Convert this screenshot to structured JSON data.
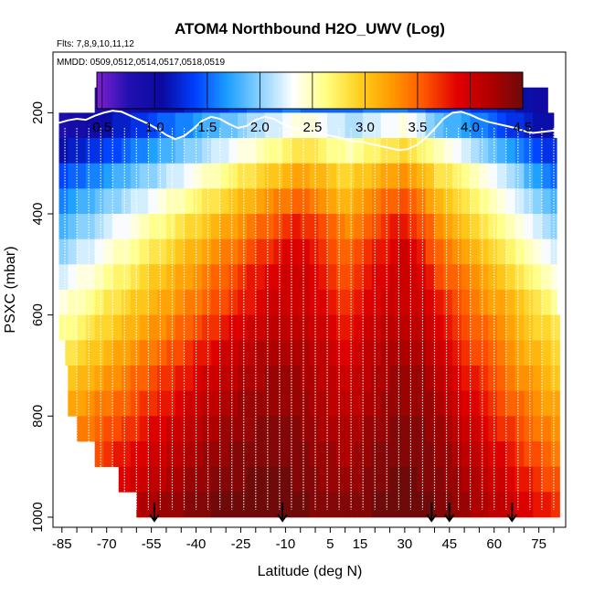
{
  "chart_data": {
    "type": "heatmap",
    "title": "ATOM4 Northbound H2O_UWV (Log)",
    "flights_note": "Flts: 7,8,9,10,11,12",
    "dates_note": "MMDD: 0509,0512,0514,0517,0518,0519",
    "xlabel": "Latitude (deg N)",
    "ylabel": "PSXC (mbar)",
    "xlim": [
      -88,
      84
    ],
    "ylim": [
      1020,
      80
    ],
    "x_ticks": [
      -85,
      -70,
      -55,
      -40,
      -25,
      -10,
      5,
      15,
      30,
      45,
      60,
      75
    ],
    "y_ticks": [
      200,
      400,
      600,
      800,
      1000
    ],
    "colorbar": {
      "range": [
        0.45,
        4.5
      ],
      "ticks": [
        0.5,
        1.0,
        1.5,
        2.0,
        2.5,
        3.0,
        3.5,
        4.0,
        4.5
      ],
      "tick_labels": [
        "0.5",
        "1.0",
        "1.5",
        "2.0",
        "2.5",
        "3.0",
        "3.5",
        "4.0",
        "4.5"
      ],
      "colors": [
        "#8020d0",
        "#2010b0",
        "#0a0aa0",
        "#0040ff",
        "#1ea0ff",
        "#8cd2ff",
        "#ffffff",
        "#ffff80",
        "#ffd020",
        "#ff9a00",
        "#ff5500",
        "#e00000",
        "#b00000",
        "#6e0a0a"
      ]
    },
    "pressure_levels": [
      175,
      225,
      275,
      325,
      375,
      425,
      475,
      525,
      575,
      625,
      675,
      725,
      775,
      825,
      875,
      925,
      975
    ],
    "grid_latitudes": [
      -84.5,
      -81.5,
      -78.5,
      -75.5,
      -72.5,
      -69.5,
      -66.5,
      -63.5,
      -60.5,
      -57.5,
      -54.5,
      -51.5,
      -48.5,
      -45.5,
      -42.5,
      -39.5,
      -36.5,
      -33.5,
      -30.5,
      -27.5,
      -24.5,
      -21.5,
      -18.5,
      -15.5,
      -12.5,
      -9.5,
      -6.5,
      -3.5,
      -0.5,
      2.5,
      5.5,
      8.5,
      11.5,
      14.5,
      17.5,
      20.5,
      23.5,
      26.5,
      29.5,
      32.5,
      35.5,
      38.5,
      41.5,
      44.5,
      47.5,
      50.5,
      53.5,
      56.5,
      59.5,
      62.5,
      65.5,
      68.5,
      71.5,
      74.5,
      77.5,
      80.5,
      83.5
    ],
    "level_lat_ranges": [
      [
        -74,
        78
      ],
      [
        -87,
        80
      ],
      [
        -87,
        81
      ],
      [
        -86,
        81
      ],
      [
        -86,
        81
      ],
      [
        -86,
        81
      ],
      [
        -86,
        81
      ],
      [
        -86,
        81
      ],
      [
        -86,
        81
      ],
      [
        -86,
        82
      ],
      [
        -84,
        82
      ],
      [
        -83,
        82
      ],
      [
        -83,
        82
      ],
      [
        -80,
        82
      ],
      [
        -74,
        82
      ],
      [
        -66,
        82
      ],
      [
        -60,
        82
      ]
    ],
    "log10_values_by_level": [
      [
        0.6,
        0.6,
        0.6,
        0.7,
        0.8,
        0.8,
        0.8,
        0.9,
        0.9,
        1.0,
        1.0,
        1.1,
        1.1,
        1.1,
        1.2,
        1.2,
        1.3,
        1.3,
        1.3,
        1.4,
        1.4,
        1.5,
        1.5,
        1.5,
        1.5,
        1.6,
        1.6,
        1.5,
        1.5,
        1.5,
        1.5,
        1.5,
        1.5,
        1.5,
        1.6,
        1.6,
        1.6,
        1.6,
        1.6,
        1.5,
        1.5,
        1.4,
        1.4,
        1.4,
        1.4,
        1.4,
        1.3,
        1.3,
        1.3,
        1.2,
        1.2,
        1.1,
        1.1,
        1.0,
        1.0,
        1.0,
        0.9
      ],
      [
        0.8,
        0.9,
        0.9,
        1.0,
        1.0,
        1.1,
        1.2,
        1.2,
        1.3,
        1.3,
        1.4,
        1.5,
        1.5,
        1.6,
        1.6,
        1.7,
        1.8,
        1.8,
        1.9,
        1.9,
        2.0,
        2.1,
        2.1,
        2.2,
        2.2,
        2.3,
        2.4,
        2.4,
        2.4,
        2.3,
        2.2,
        2.2,
        2.1,
        2.1,
        2.2,
        2.2,
        2.3,
        2.3,
        2.4,
        2.3,
        2.2,
        2.0,
        1.9,
        1.8,
        1.8,
        1.7,
        1.6,
        1.6,
        1.5,
        1.4,
        1.3,
        1.3,
        1.2,
        1.1,
        1.1,
        1.0,
        1.0
      ],
      [
        1.1,
        1.2,
        1.2,
        1.3,
        1.3,
        1.4,
        1.4,
        1.5,
        1.6,
        1.6,
        1.7,
        1.8,
        1.8,
        1.9,
        2.0,
        2.0,
        2.1,
        2.2,
        2.2,
        2.3,
        2.4,
        2.4,
        2.5,
        2.6,
        2.6,
        2.7,
        2.8,
        2.8,
        2.8,
        2.7,
        2.6,
        2.6,
        2.5,
        2.6,
        2.7,
        2.7,
        2.8,
        2.8,
        2.9,
        2.8,
        2.7,
        2.6,
        2.5,
        2.4,
        2.3,
        2.2,
        2.1,
        2.0,
        1.9,
        1.8,
        1.7,
        1.6,
        1.5,
        1.4,
        1.3,
        1.3,
        1.2
      ],
      [
        1.4,
        1.5,
        1.5,
        1.6,
        1.6,
        1.7,
        1.8,
        1.8,
        1.9,
        2.0,
        2.0,
        2.1,
        2.2,
        2.2,
        2.3,
        2.4,
        2.5,
        2.5,
        2.6,
        2.7,
        2.8,
        2.8,
        2.9,
        3.0,
        3.0,
        3.1,
        3.2,
        3.2,
        3.1,
        3.1,
        3.0,
        2.9,
        2.9,
        3.0,
        3.0,
        3.1,
        3.2,
        3.2,
        3.3,
        3.2,
        3.1,
        3.0,
        2.8,
        2.8,
        2.7,
        2.6,
        2.5,
        2.4,
        2.3,
        2.2,
        2.1,
        2.0,
        1.8,
        1.7,
        1.6,
        1.5,
        1.5
      ],
      [
        1.6,
        1.7,
        1.8,
        1.8,
        1.9,
        2.0,
        2.0,
        2.1,
        2.2,
        2.2,
        2.3,
        2.4,
        2.5,
        2.5,
        2.6,
        2.7,
        2.8,
        2.8,
        2.9,
        3.0,
        3.1,
        3.1,
        3.2,
        3.3,
        3.4,
        3.4,
        3.5,
        3.5,
        3.4,
        3.3,
        3.2,
        3.1,
        3.1,
        3.2,
        3.3,
        3.4,
        3.5,
        3.5,
        3.6,
        3.5,
        3.4,
        3.2,
        3.1,
        3.0,
        2.9,
        2.8,
        2.7,
        2.6,
        2.5,
        2.4,
        2.3,
        2.2,
        2.1,
        2.0,
        1.9,
        1.8,
        1.7
      ],
      [
        1.8,
        1.9,
        2.0,
        2.0,
        2.1,
        2.2,
        2.3,
        2.3,
        2.4,
        2.5,
        2.6,
        2.6,
        2.7,
        2.8,
        2.9,
        2.9,
        3.0,
        3.1,
        3.2,
        3.2,
        3.3,
        3.4,
        3.5,
        3.5,
        3.6,
        3.7,
        3.8,
        3.7,
        3.7,
        3.6,
        3.5,
        3.4,
        3.3,
        3.4,
        3.5,
        3.6,
        3.7,
        3.8,
        3.8,
        3.7,
        3.6,
        3.5,
        3.3,
        3.2,
        3.1,
        3.0,
        2.9,
        2.8,
        2.7,
        2.6,
        2.5,
        2.4,
        2.3,
        2.2,
        2.1,
        2.0,
        1.9
      ],
      [
        2.0,
        2.1,
        2.2,
        2.2,
        2.3,
        2.4,
        2.5,
        2.5,
        2.6,
        2.7,
        2.8,
        2.8,
        2.9,
        3.0,
        3.1,
        3.1,
        3.2,
        3.3,
        3.4,
        3.4,
        3.5,
        3.6,
        3.7,
        3.7,
        3.8,
        3.9,
        3.9,
        3.9,
        3.8,
        3.7,
        3.6,
        3.5,
        3.5,
        3.6,
        3.7,
        3.8,
        3.8,
        3.9,
        4.0,
        3.9,
        3.8,
        3.6,
        3.5,
        3.4,
        3.3,
        3.2,
        3.1,
        3.0,
        2.9,
        2.8,
        2.7,
        2.6,
        2.5,
        2.4,
        2.3,
        2.2,
        2.1
      ],
      [
        2.2,
        2.3,
        2.4,
        2.4,
        2.5,
        2.6,
        2.7,
        2.7,
        2.8,
        2.9,
        3.0,
        3.0,
        3.1,
        3.2,
        3.2,
        3.3,
        3.4,
        3.5,
        3.5,
        3.6,
        3.7,
        3.8,
        3.8,
        3.9,
        3.9,
        4.0,
        4.0,
        4.0,
        3.9,
        3.8,
        3.7,
        3.6,
        3.6,
        3.7,
        3.8,
        3.9,
        3.9,
        4.0,
        4.0,
        4.0,
        3.9,
        3.8,
        3.6,
        3.5,
        3.5,
        3.4,
        3.3,
        3.2,
        3.1,
        3.0,
        2.9,
        2.8,
        2.7,
        2.6,
        2.5,
        2.4,
        2.3
      ],
      [
        2.4,
        2.5,
        2.5,
        2.6,
        2.7,
        2.8,
        2.8,
        2.9,
        3.0,
        3.0,
        3.1,
        3.2,
        3.2,
        3.3,
        3.4,
        3.4,
        3.5,
        3.6,
        3.6,
        3.7,
        3.8,
        3.8,
        3.9,
        4.0,
        4.0,
        4.0,
        4.0,
        4.0,
        3.9,
        3.9,
        3.8,
        3.7,
        3.7,
        3.8,
        3.9,
        3.9,
        4.0,
        4.0,
        4.0,
        4.0,
        4.0,
        3.9,
        3.8,
        3.7,
        3.6,
        3.5,
        3.4,
        3.3,
        3.2,
        3.2,
        3.1,
        3.0,
        2.9,
        2.8,
        2.7,
        2.6,
        2.5
      ],
      [
        2.6,
        2.6,
        2.7,
        2.8,
        2.9,
        2.9,
        3.0,
        3.1,
        3.1,
        3.2,
        3.3,
        3.3,
        3.4,
        3.5,
        3.5,
        3.6,
        3.7,
        3.7,
        3.8,
        3.9,
        3.9,
        4.0,
        4.0,
        4.1,
        4.1,
        4.1,
        4.1,
        4.1,
        4.0,
        4.0,
        3.9,
        3.8,
        3.8,
        3.9,
        4.0,
        4.0,
        4.1,
        4.1,
        4.1,
        4.1,
        4.1,
        4.0,
        3.9,
        3.8,
        3.7,
        3.6,
        3.5,
        3.5,
        3.4,
        3.3,
        3.2,
        3.1,
        3.0,
        2.9,
        2.9,
        2.8,
        2.7
      ],
      [
        2.8,
        2.8,
        2.9,
        3.0,
        3.0,
        3.1,
        3.2,
        3.2,
        3.3,
        3.4,
        3.4,
        3.5,
        3.6,
        3.6,
        3.7,
        3.8,
        3.8,
        3.9,
        4.0,
        4.0,
        4.1,
        4.1,
        4.2,
        4.2,
        4.2,
        4.2,
        4.2,
        4.2,
        4.1,
        4.1,
        4.0,
        3.9,
        3.9,
        4.0,
        4.1,
        4.1,
        4.2,
        4.2,
        4.2,
        4.2,
        4.2,
        4.1,
        4.0,
        3.9,
        3.8,
        3.7,
        3.6,
        3.6,
        3.5,
        3.4,
        3.3,
        3.2,
        3.1,
        3.1,
        3.0,
        2.9,
        2.8
      ],
      [
        3.0,
        3.0,
        3.1,
        3.1,
        3.2,
        3.3,
        3.3,
        3.4,
        3.5,
        3.5,
        3.6,
        3.7,
        3.7,
        3.8,
        3.8,
        3.9,
        4.0,
        4.0,
        4.1,
        4.1,
        4.2,
        4.2,
        4.2,
        4.3,
        4.3,
        4.3,
        4.3,
        4.2,
        4.2,
        4.1,
        4.1,
        4.0,
        4.0,
        4.1,
        4.1,
        4.2,
        4.2,
        4.3,
        4.3,
        4.3,
        4.3,
        4.2,
        4.1,
        4.0,
        3.9,
        3.8,
        3.8,
        3.7,
        3.6,
        3.5,
        3.4,
        3.3,
        3.3,
        3.2,
        3.1,
        3.0,
        3.0
      ],
      [
        3.1,
        3.2,
        3.2,
        3.3,
        3.4,
        3.4,
        3.5,
        3.5,
        3.6,
        3.7,
        3.7,
        3.8,
        3.8,
        3.9,
        4.0,
        4.0,
        4.1,
        4.1,
        4.2,
        4.2,
        4.3,
        4.3,
        4.3,
        4.3,
        4.3,
        4.3,
        4.3,
        4.3,
        4.2,
        4.2,
        4.1,
        4.1,
        4.1,
        4.1,
        4.2,
        4.2,
        4.3,
        4.3,
        4.3,
        4.3,
        4.3,
        4.3,
        4.2,
        4.1,
        4.0,
        3.9,
        3.9,
        3.8,
        3.7,
        3.6,
        3.5,
        3.5,
        3.4,
        3.3,
        3.2,
        3.2,
        3.1
      ],
      [
        3.3,
        3.3,
        3.4,
        3.4,
        3.5,
        3.6,
        3.6,
        3.7,
        3.7,
        3.8,
        3.9,
        3.9,
        4.0,
        4.0,
        4.1,
        4.1,
        4.2,
        4.2,
        4.3,
        4.3,
        4.3,
        4.3,
        4.4,
        4.4,
        4.4,
        4.4,
        4.4,
        4.3,
        4.3,
        4.2,
        4.2,
        4.2,
        4.2,
        4.2,
        4.3,
        4.3,
        4.3,
        4.4,
        4.4,
        4.4,
        4.4,
        4.3,
        4.3,
        4.2,
        4.1,
        4.0,
        4.0,
        3.9,
        3.8,
        3.7,
        3.7,
        3.6,
        3.5,
        3.4,
        3.4,
        3.3,
        3.2
      ],
      [
        3.4,
        3.5,
        3.5,
        3.6,
        3.6,
        3.7,
        3.8,
        3.8,
        3.9,
        3.9,
        4.0,
        4.0,
        4.1,
        4.1,
        4.2,
        4.2,
        4.3,
        4.3,
        4.3,
        4.4,
        4.4,
        4.4,
        4.4,
        4.4,
        4.4,
        4.4,
        4.4,
        4.4,
        4.3,
        4.3,
        4.3,
        4.2,
        4.2,
        4.3,
        4.3,
        4.4,
        4.4,
        4.4,
        4.4,
        4.4,
        4.4,
        4.4,
        4.3,
        4.3,
        4.2,
        4.1,
        4.1,
        4.0,
        3.9,
        3.9,
        3.8,
        3.7,
        3.6,
        3.6,
        3.5,
        3.4,
        3.4
      ],
      [
        3.6,
        3.6,
        3.7,
        3.7,
        3.8,
        3.8,
        3.9,
        3.9,
        4.0,
        4.0,
        4.1,
        4.1,
        4.2,
        4.2,
        4.3,
        4.3,
        4.3,
        4.4,
        4.4,
        4.4,
        4.4,
        4.5,
        4.5,
        4.5,
        4.5,
        4.5,
        4.4,
        4.4,
        4.4,
        4.3,
        4.3,
        4.3,
        4.3,
        4.3,
        4.4,
        4.4,
        4.4,
        4.5,
        4.5,
        4.5,
        4.4,
        4.4,
        4.4,
        4.3,
        4.3,
        4.2,
        4.2,
        4.1,
        4.0,
        4.0,
        3.9,
        3.8,
        3.8,
        3.7,
        3.6,
        3.6,
        3.5
      ],
      [
        3.7,
        3.8,
        3.8,
        3.9,
        3.9,
        4.0,
        4.0,
        4.1,
        4.1,
        4.2,
        4.2,
        4.3,
        4.3,
        4.3,
        4.4,
        4.4,
        4.4,
        4.5,
        4.5,
        4.5,
        4.5,
        4.5,
        4.5,
        4.5,
        4.5,
        4.5,
        4.5,
        4.5,
        4.4,
        4.4,
        4.4,
        4.4,
        4.4,
        4.4,
        4.4,
        4.5,
        4.5,
        4.5,
        4.5,
        4.5,
        4.5,
        4.5,
        4.4,
        4.4,
        4.3,
        4.3,
        4.2,
        4.2,
        4.1,
        4.1,
        4.0,
        3.9,
        3.9,
        3.8,
        3.8,
        3.7,
        3.6
      ]
    ],
    "tropopause_line": {
      "color": "#ffffff",
      "points": [
        [
          -86,
          220
        ],
        [
          -83,
          215
        ],
        [
          -80,
          212
        ],
        [
          -77,
          214
        ],
        [
          -74,
          206
        ],
        [
          -71,
          200
        ],
        [
          -68,
          196
        ],
        [
          -65,
          198
        ],
        [
          -62,
          206
        ],
        [
          -59,
          214
        ],
        [
          -56,
          222
        ],
        [
          -53,
          232
        ],
        [
          -50,
          244
        ],
        [
          -47,
          252
        ],
        [
          -44,
          246
        ],
        [
          -41,
          232
        ],
        [
          -38,
          216
        ],
        [
          -35,
          208
        ],
        [
          -32,
          212
        ],
        [
          -29,
          222
        ],
        [
          -26,
          230
        ],
        [
          -23,
          226
        ],
        [
          -20,
          214
        ],
        [
          -17,
          208
        ],
        [
          -14,
          212
        ],
        [
          -11,
          222
        ],
        [
          -8,
          230
        ],
        [
          -5,
          234
        ],
        [
          -2,
          238
        ],
        [
          1,
          240
        ],
        [
          4,
          244
        ],
        [
          7,
          248
        ],
        [
          10,
          252
        ],
        [
          13,
          256
        ],
        [
          16,
          258
        ],
        [
          19,
          262
        ],
        [
          22,
          266
        ],
        [
          25,
          270
        ],
        [
          28,
          274
        ],
        [
          31,
          272
        ],
        [
          34,
          264
        ],
        [
          37,
          250
        ],
        [
          40,
          232
        ],
        [
          43,
          212
        ],
        [
          46,
          200
        ],
        [
          49,
          198
        ],
        [
          52,
          204
        ],
        [
          55,
          212
        ],
        [
          58,
          218
        ],
        [
          61,
          222
        ],
        [
          64,
          226
        ],
        [
          67,
          230
        ],
        [
          70,
          236
        ],
        [
          73,
          240
        ],
        [
          76,
          238
        ],
        [
          79,
          236
        ],
        [
          82,
          234
        ]
      ]
    },
    "profiles": {
      "color": "#ffffff",
      "latitudes": [
        -84,
        -80,
        -76,
        -72,
        -68,
        -64,
        -60,
        -56,
        -52,
        -48,
        -44,
        -40,
        -36,
        -32,
        -28,
        -24,
        -20,
        -16,
        -12,
        -8,
        -4,
        0,
        4,
        8,
        12,
        16,
        20,
        24,
        28,
        32,
        36,
        40,
        44,
        48,
        52,
        56,
        60,
        64,
        68,
        72,
        76,
        80
      ],
      "top_pressure": 230,
      "bottom_pressure": 985
    },
    "sonde_markers": {
      "latitudes": [
        -54,
        -11,
        39,
        45,
        66
      ],
      "pressure": 1000
    }
  }
}
